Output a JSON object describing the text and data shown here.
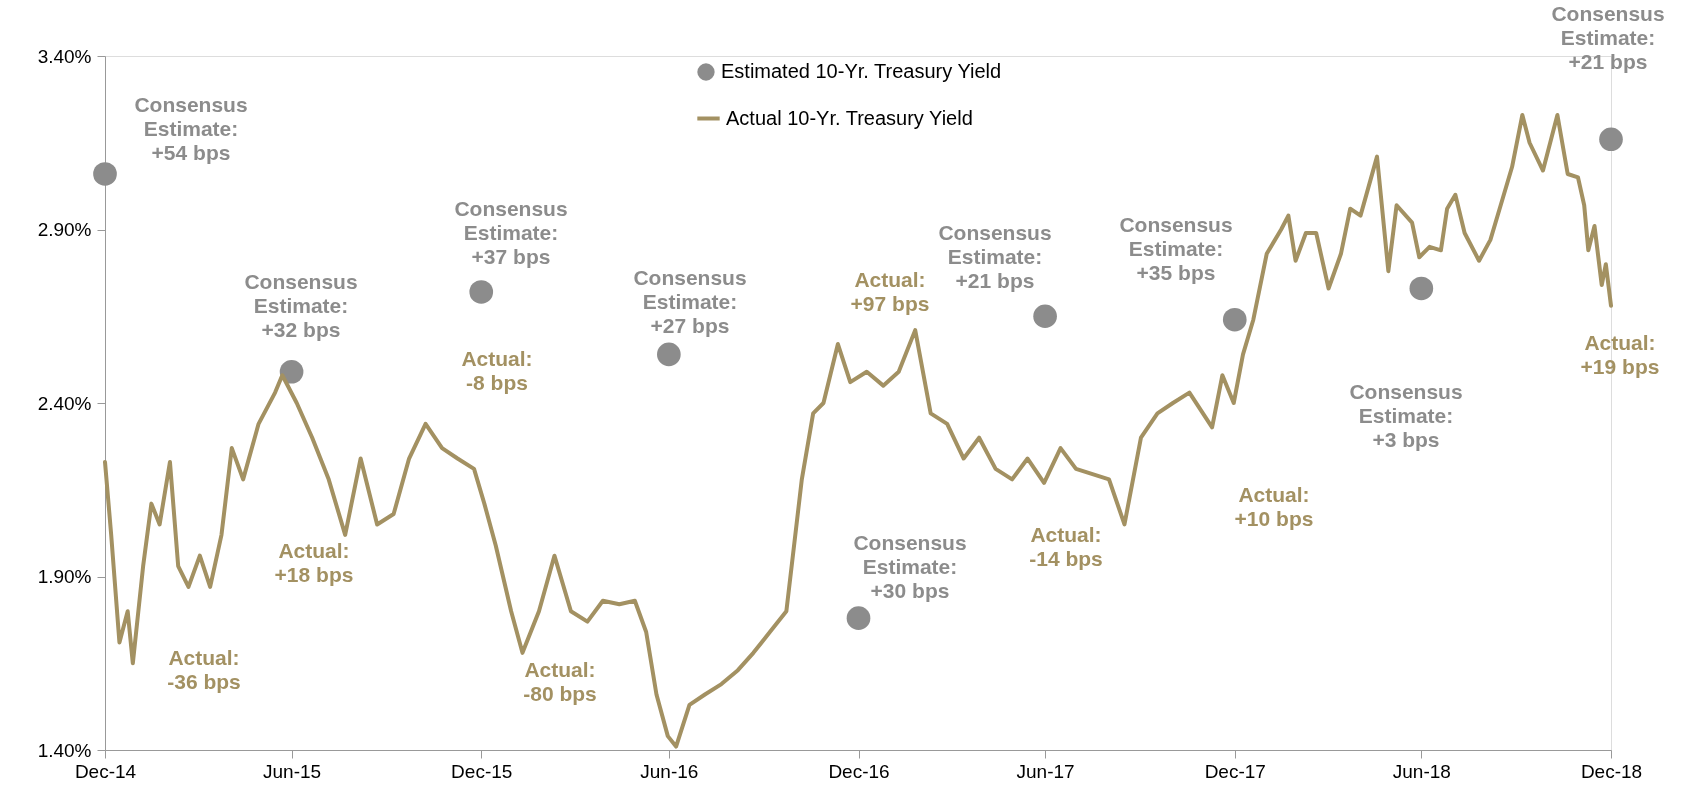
{
  "chart_data": {
    "type": "line",
    "series": [
      {
        "name": "Estimated 10-Yr. Treasury Yield",
        "type": "scatter",
        "marker": "circle",
        "color": "#8c8c8c",
        "x": [
          "2014-12-31",
          "2015-06-30",
          "2015-12-31",
          "2016-06-30",
          "2016-12-31",
          "2017-06-30",
          "2017-12-31",
          "2018-06-30",
          "2018-12-31"
        ],
        "values": [
          3.06,
          2.49,
          2.72,
          2.54,
          1.78,
          2.65,
          2.64,
          2.73,
          3.16
        ]
      },
      {
        "name": "Actual 10-Yr. Treasury Yield",
        "color": "#a39162",
        "x": [
          "2014-12-31",
          "2015-01-06",
          "2015-01-14",
          "2015-01-22",
          "2015-01-27",
          "2015-02-06",
          "2015-02-14",
          "2015-02-22",
          "2015-03-04",
          "2015-03-12",
          "2015-03-22",
          "2015-04-02",
          "2015-04-12",
          "2015-04-23",
          "2015-05-03",
          "2015-05-14",
          "2015-05-29",
          "2015-06-14",
          "2015-06-21",
          "2015-07-05",
          "2015-07-20",
          "2015-08-05",
          "2015-08-21",
          "2015-09-05",
          "2015-09-21",
          "2015-10-07",
          "2015-10-22",
          "2015-11-07",
          "2015-11-23",
          "2015-12-08",
          "2015-12-24",
          "2016-01-03",
          "2016-01-14",
          "2016-01-29",
          "2016-02-09",
          "2016-02-25",
          "2016-03-11",
          "2016-03-27",
          "2016-04-12",
          "2016-04-27",
          "2016-05-13",
          "2016-05-28",
          "2016-06-08",
          "2016-06-18",
          "2016-06-29",
          "2016-07-07",
          "2016-07-20",
          "2016-08-04",
          "2016-08-20",
          "2016-09-05",
          "2016-09-20",
          "2016-10-06",
          "2016-10-22",
          "2016-11-06",
          "2016-11-17",
          "2016-11-27",
          "2016-12-11",
          "2016-12-23",
          "2017-01-08",
          "2017-01-24",
          "2017-02-08",
          "2017-02-24",
          "2017-03-11",
          "2017-03-27",
          "2017-04-12",
          "2017-04-27",
          "2017-05-13",
          "2017-05-29",
          "2017-06-13",
          "2017-06-29",
          "2017-07-15",
          "2017-07-30",
          "2017-08-31",
          "2017-09-15",
          "2017-10-01",
          "2017-10-17",
          "2017-11-01",
          "2017-11-17",
          "2017-12-09",
          "2017-12-19",
          "2017-12-30",
          "2018-01-08",
          "2018-01-18",
          "2018-01-31",
          "2018-02-14",
          "2018-02-21",
          "2018-02-28",
          "2018-03-10",
          "2018-03-20",
          "2018-04-01",
          "2018-04-13",
          "2018-04-22",
          "2018-05-02",
          "2018-05-18",
          "2018-05-29",
          "2018-06-06",
          "2018-06-21",
          "2018-06-28",
          "2018-07-08",
          "2018-07-19",
          "2018-07-25",
          "2018-08-02",
          "2018-08-11",
          "2018-08-25",
          "2018-09-05",
          "2018-09-17",
          "2018-09-26",
          "2018-10-06",
          "2018-10-13",
          "2018-10-26",
          "2018-11-09",
          "2018-11-19",
          "2018-11-29",
          "2018-12-05",
          "2018-12-09",
          "2018-12-15",
          "2018-12-22",
          "2018-12-26",
          "2018-12-31"
        ],
        "values": [
          2.23,
          2.02,
          1.71,
          1.8,
          1.65,
          1.93,
          2.11,
          2.05,
          2.23,
          1.93,
          1.87,
          1.96,
          1.87,
          2.02,
          2.27,
          2.18,
          2.34,
          2.43,
          2.48,
          2.4,
          2.3,
          2.18,
          2.02,
          2.24,
          2.05,
          2.08,
          2.24,
          2.34,
          2.27,
          2.24,
          2.21,
          2.11,
          1.99,
          1.8,
          1.68,
          1.8,
          1.96,
          1.8,
          1.77,
          1.83,
          1.82,
          1.83,
          1.74,
          1.56,
          1.44,
          1.41,
          1.53,
          1.56,
          1.59,
          1.63,
          1.68,
          1.74,
          1.8,
          2.18,
          2.37,
          2.4,
          2.57,
          2.46,
          2.49,
          2.45,
          2.49,
          2.61,
          2.37,
          2.34,
          2.24,
          2.3,
          2.21,
          2.18,
          2.24,
          2.17,
          2.27,
          2.21,
          2.18,
          2.05,
          2.3,
          2.37,
          2.4,
          2.43,
          2.33,
          2.48,
          2.4,
          2.54,
          2.64,
          2.83,
          2.9,
          2.94,
          2.81,
          2.89,
          2.89,
          2.73,
          2.83,
          2.96,
          2.94,
          3.11,
          2.78,
          2.97,
          2.92,
          2.82,
          2.85,
          2.84,
          2.96,
          3.0,
          2.89,
          2.81,
          2.87,
          2.99,
          3.08,
          3.23,
          3.15,
          3.07,
          3.23,
          3.06,
          3.05,
          2.97,
          2.84,
          2.91,
          2.74,
          2.8,
          2.68
        ]
      }
    ],
    "line_style": "solid",
    "xlim": [
      "2014-12-31",
      "2018-12-31"
    ],
    "xticks": [
      {
        "value": "2014-12-31",
        "label": "Dec-14"
      },
      {
        "value": "2015-06-30",
        "label": "Jun-15"
      },
      {
        "value": "2015-12-31",
        "label": "Dec-15"
      },
      {
        "value": "2016-06-30",
        "label": "Jun-16"
      },
      {
        "value": "2016-12-31",
        "label": "Dec-16"
      },
      {
        "value": "2017-06-30",
        "label": "Jun-17"
      },
      {
        "value": "2017-12-31",
        "label": "Dec-17"
      },
      {
        "value": "2018-06-30",
        "label": "Jun-18"
      },
      {
        "value": "2018-12-31",
        "label": "Dec-18"
      }
    ],
    "ylim": [
      1.4,
      3.4
    ],
    "yticks": [
      {
        "value": 1.4,
        "label": "1.40%"
      },
      {
        "value": 1.9,
        "label": "1.90%"
      },
      {
        "value": 2.4,
        "label": "2.40%"
      },
      {
        "value": 2.9,
        "label": "2.90%"
      },
      {
        "value": 3.4,
        "label": "3.40%"
      }
    ],
    "grid": false,
    "legend": "top",
    "annotations": [
      "Consensus\nEstimate:\n+54 bps",
      "Consensus\nEstimate:\n+32 bps",
      "Consensus\nEstimate:\n+37 bps",
      "Consensus\nEstimate:\n+27 bps",
      "Consensus\nEstimate:\n+30 bps",
      "Consensus\nEstimate:\n+21 bps",
      "Consensus\nEstimate:\n+35 bps",
      "Consensus\nEstimate:\n+3 bps",
      "Consensus\nEstimate:\n+21 bps",
      "Actual:\n-36 bps",
      "Actual:\n+18 bps",
      "Actual:\n-8 bps",
      "Actual:\n-80 bps",
      "Actual:\n+97 bps",
      "Actual:\n-14 bps",
      "Actual:\n+10 bps",
      "Actual:\n+19 bps"
    ]
  }
}
